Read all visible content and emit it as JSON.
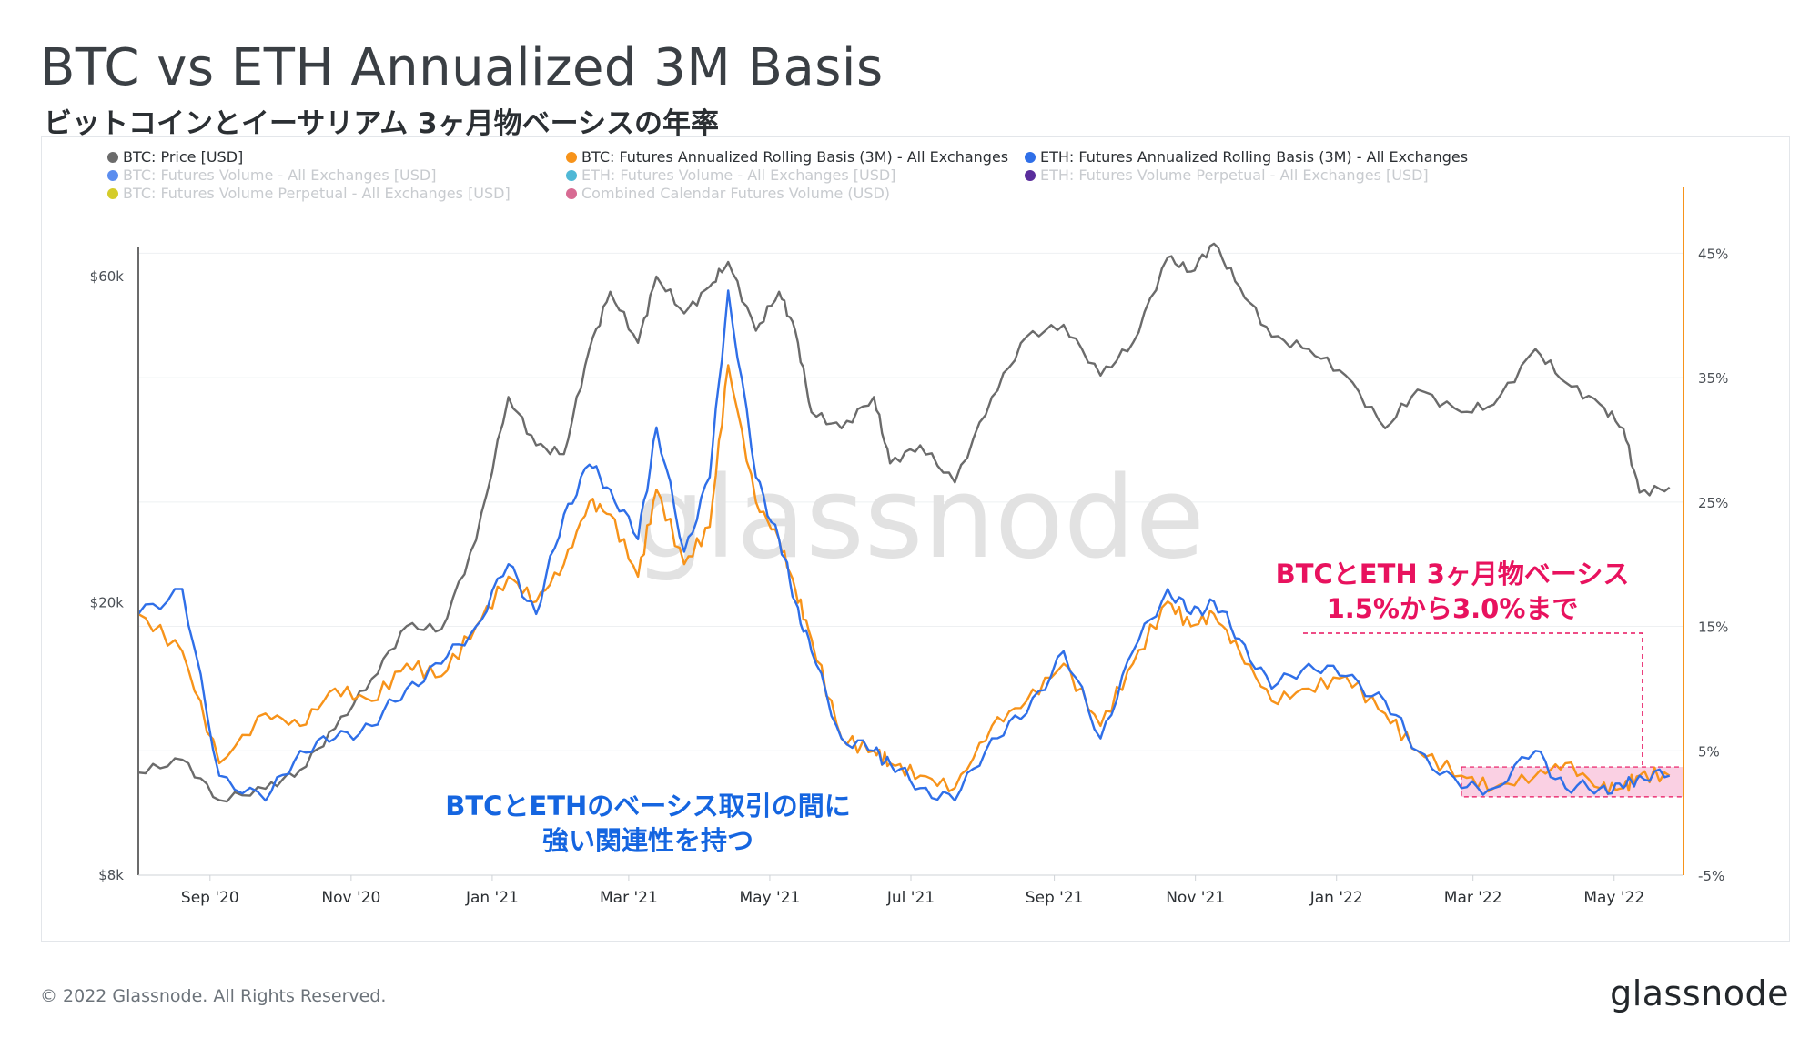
{
  "title": "BTC vs ETH Annualized 3M Basis",
  "subtitle": "ビットコインとイーサリアム 3ヶ月物ベーシスの年率",
  "footer": "© 2022 Glassnode. All Rights Reserved.",
  "brand": "glassnode",
  "watermark": "glassnode",
  "annotations": {
    "left_line1": "BTCとETHのベーシス取引の間に",
    "left_line2": "強い関連性を持つ",
    "right_line1": "BTCとETH 3ヶ月物ベーシス",
    "right_line2": "1.5%から3.0%まで"
  },
  "colors": {
    "btc_price": "#6b6b6b",
    "btc_basis": "#f7931a",
    "eth_basis": "#2f6fe8",
    "annotation_blue": "#1565e0",
    "annotation_pink": "#e8125e",
    "highlight_fill": "#f9c4dc",
    "right_axis": "#f7931a"
  },
  "chart_data": {
    "type": "line",
    "legend": [
      {
        "name": "BTC: Price [USD]",
        "color": "#6b6b6b",
        "active": true
      },
      {
        "name": "BTC: Futures Annualized Rolling Basis (3M) - All Exchanges",
        "color": "#f7931a",
        "active": true
      },
      {
        "name": "ETH: Futures Annualized Rolling Basis (3M) - All Exchanges",
        "color": "#2f6fe8",
        "active": true
      },
      {
        "name": "BTC: Futures Volume - All Exchanges [USD]",
        "color": "#5b8def",
        "active": false
      },
      {
        "name": "ETH: Futures Volume - All Exchanges [USD]",
        "color": "#4fb8d6",
        "active": false
      },
      {
        "name": "ETH: Futures Volume Perpetual - All Exchanges [USD]",
        "color": "#5a2d9c",
        "active": false
      },
      {
        "name": "BTC: Futures Volume Perpetual - All Exchanges [USD]",
        "color": "#d4cc2a",
        "active": false
      },
      {
        "name": "Combined Calendar Futures Volume (USD)",
        "color": "#d86b93",
        "active": false
      }
    ],
    "x_ticks": [
      "Sep '20",
      "Nov '20",
      "Jan '21",
      "Mar '21",
      "May '21",
      "Jul '21",
      "Sep '21",
      "Nov '21",
      "Jan '22",
      "Mar '22",
      "May '22"
    ],
    "left_axis": {
      "scale": "log",
      "ticks": [
        "$8k",
        "$20k",
        "$60k"
      ],
      "tick_values": [
        8000,
        20000,
        60000
      ],
      "range": [
        8000,
        80000
      ]
    },
    "right_axis": {
      "ticks": [
        "-5%",
        "5%",
        "15%",
        "25%",
        "35%",
        "45%"
      ],
      "tick_values": [
        -5,
        5,
        15,
        25,
        35,
        45
      ],
      "range": [
        -5,
        50
      ]
    },
    "x_range": [
      "2020-08-01",
      "2022-05-31"
    ],
    "series": [
      {
        "name": "BTC: Price [USD]",
        "axis": "left",
        "x": [
          "2020-08-01",
          "2020-08-20",
          "2020-09-05",
          "2020-09-25",
          "2020-10-10",
          "2020-10-25",
          "2020-11-10",
          "2020-11-25",
          "2020-12-10",
          "2020-12-25",
          "2021-01-08",
          "2021-01-20",
          "2021-02-01",
          "2021-02-12",
          "2021-02-21",
          "2021-03-05",
          "2021-03-13",
          "2021-03-25",
          "2021-04-05",
          "2021-04-13",
          "2021-04-25",
          "2021-05-05",
          "2021-05-12",
          "2021-05-19",
          "2021-06-01",
          "2021-06-15",
          "2021-06-22",
          "2021-07-05",
          "2021-07-20",
          "2021-08-05",
          "2021-08-20",
          "2021-09-05",
          "2021-09-21",
          "2021-10-05",
          "2021-10-20",
          "2021-10-30",
          "2021-11-09",
          "2021-11-20",
          "2021-12-04",
          "2021-12-20",
          "2022-01-05",
          "2022-01-22",
          "2022-02-05",
          "2022-02-24",
          "2022-03-10",
          "2022-03-28",
          "2022-04-10",
          "2022-04-25",
          "2022-05-05",
          "2022-05-12",
          "2022-05-25"
        ],
        "values": [
          11300,
          11800,
          10300,
          10700,
          11400,
          13100,
          15500,
          18500,
          18300,
          24700,
          40000,
          34000,
          33000,
          47000,
          57000,
          48000,
          60000,
          53000,
          58000,
          63000,
          50000,
          57000,
          50000,
          38000,
          36000,
          40000,
          32000,
          34000,
          30000,
          40000,
          49000,
          51000,
          43000,
          48000,
          64000,
          61000,
          67000,
          58000,
          49000,
          47000,
          43000,
          36000,
          41000,
          38000,
          39000,
          47000,
          42000,
          39000,
          36000,
          29000,
          29500
        ]
      },
      {
        "name": "BTC: Futures Annualized Rolling Basis (3M) - All Exchanges",
        "axis": "right",
        "x": [
          "2020-08-01",
          "2020-08-20",
          "2020-09-05",
          "2020-09-25",
          "2020-10-10",
          "2020-10-25",
          "2020-11-10",
          "2020-11-25",
          "2020-12-10",
          "2020-12-25",
          "2021-01-08",
          "2021-01-20",
          "2021-02-01",
          "2021-02-12",
          "2021-02-21",
          "2021-03-05",
          "2021-03-13",
          "2021-03-25",
          "2021-04-05",
          "2021-04-13",
          "2021-04-25",
          "2021-05-05",
          "2021-05-12",
          "2021-05-19",
          "2021-06-01",
          "2021-06-15",
          "2021-06-22",
          "2021-07-05",
          "2021-07-20",
          "2021-08-05",
          "2021-08-20",
          "2021-09-05",
          "2021-09-21",
          "2021-10-05",
          "2021-10-20",
          "2021-10-30",
          "2021-11-09",
          "2021-11-20",
          "2021-12-04",
          "2021-12-20",
          "2022-01-05",
          "2022-01-22",
          "2022-02-05",
          "2022-02-24",
          "2022-03-10",
          "2022-03-28",
          "2022-04-10",
          "2022-04-25",
          "2022-05-05",
          "2022-05-12",
          "2022-05-25"
        ],
        "values": [
          16,
          13,
          4,
          8,
          7,
          10,
          9,
          12,
          11,
          15,
          19,
          17,
          20,
          25,
          24,
          19,
          26,
          20,
          23,
          36,
          25,
          22,
          18,
          14,
          6,
          5,
          4,
          3,
          2,
          7,
          9,
          12,
          7,
          12,
          17,
          15,
          16,
          13,
          9,
          10,
          11,
          8,
          5,
          3,
          2,
          3,
          4,
          2,
          2,
          3,
          3
        ]
      },
      {
        "name": "ETH: Futures Annualized Rolling Basis (3M) - All Exchanges",
        "axis": "right",
        "x": [
          "2020-08-01",
          "2020-08-20",
          "2020-09-05",
          "2020-09-25",
          "2020-10-10",
          "2020-10-25",
          "2020-11-10",
          "2020-11-25",
          "2020-12-10",
          "2020-12-25",
          "2021-01-08",
          "2021-01-20",
          "2021-02-01",
          "2021-02-12",
          "2021-02-21",
          "2021-03-05",
          "2021-03-13",
          "2021-03-25",
          "2021-04-05",
          "2021-04-13",
          "2021-04-25",
          "2021-05-05",
          "2021-05-12",
          "2021-05-19",
          "2021-06-01",
          "2021-06-15",
          "2021-06-22",
          "2021-07-05",
          "2021-07-20",
          "2021-08-05",
          "2021-08-20",
          "2021-09-05",
          "2021-09-21",
          "2021-10-05",
          "2021-10-20",
          "2021-10-30",
          "2021-11-09",
          "2021-11-20",
          "2021-12-04",
          "2021-12-20",
          "2022-01-05",
          "2022-01-22",
          "2022-02-05",
          "2022-02-24",
          "2022-03-10",
          "2022-03-28",
          "2022-04-10",
          "2022-04-25",
          "2022-05-05",
          "2022-05-12",
          "2022-05-25"
        ],
        "values": [
          16,
          18,
          3,
          1,
          5,
          6,
          7,
          10,
          12,
          15,
          20,
          16,
          24,
          28,
          26,
          22,
          31,
          21,
          27,
          42,
          27,
          22,
          17,
          13,
          6,
          5,
          4,
          2,
          1,
          6,
          8,
          13,
          6,
          13,
          18,
          16,
          17,
          14,
          10,
          12,
          11,
          9,
          5,
          2,
          2,
          5,
          2,
          2,
          2,
          3,
          3
        ]
      }
    ]
  }
}
